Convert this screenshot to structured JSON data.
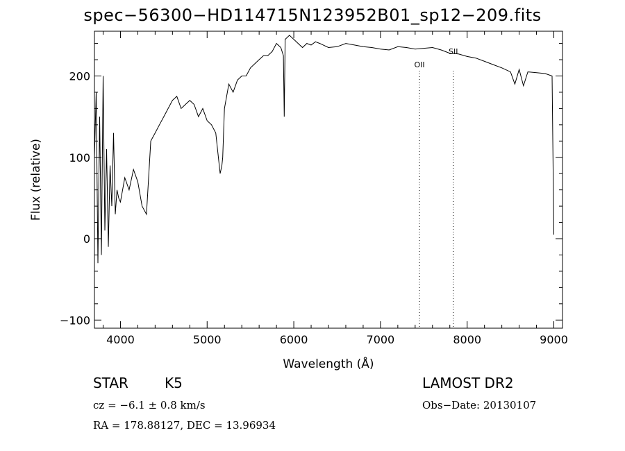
{
  "chart_data": {
    "type": "line",
    "title": "spec−56300−HD114715N123952B01_sp12−209.fits",
    "xlabel": "Wavelength (Å)",
    "ylabel": "Flux (relative)",
    "xlim": [
      3700,
      9100
    ],
    "ylim": [
      -110,
      255
    ],
    "x_ticks": [
      4000,
      5000,
      6000,
      7000,
      8000,
      9000
    ],
    "y_ticks": [
      -100,
      0,
      100,
      200
    ],
    "x_tick_labels": [
      "4000",
      "5000",
      "6000",
      "7000",
      "8000",
      "9000"
    ],
    "y_tick_labels": [
      "−100",
      "0",
      "100",
      "200"
    ],
    "grid": false,
    "line_color": "#000000",
    "series": [
      {
        "x": [
          3700,
          3720,
          3740,
          3760,
          3780,
          3800,
          3820,
          3840,
          3860,
          3880,
          3900,
          3920,
          3940,
          3960,
          3980,
          4000,
          4050,
          4100,
          4150,
          4200,
          4250,
          4300,
          4350,
          4400,
          4450,
          4500,
          4550,
          4600,
          4650,
          4700,
          4750,
          4800,
          4850,
          4900,
          4950,
          5000,
          5050,
          5100,
          5150,
          5170,
          5180,
          5200,
          5250,
          5300,
          5350,
          5400,
          5450,
          5500,
          5550,
          5600,
          5650,
          5700,
          5750,
          5800,
          5850,
          5880,
          5890,
          5900,
          5950,
          6000,
          6050,
          6100,
          6150,
          6200,
          6250,
          6300,
          6400,
          6500,
          6600,
          6700,
          6800,
          6900,
          7000,
          7100,
          7200,
          7300,
          7400,
          7500,
          7600,
          7700,
          7800,
          7900,
          8000,
          8100,
          8200,
          8300,
          8400,
          8500,
          8550,
          8600,
          8650,
          8700,
          8800,
          8900,
          8980,
          8990,
          9000
        ],
        "y": [
          100,
          180,
          -30,
          150,
          -20,
          200,
          10,
          110,
          -10,
          90,
          40,
          130,
          30,
          60,
          50,
          45,
          75,
          60,
          85,
          70,
          40,
          30,
          120,
          130,
          140,
          150,
          160,
          170,
          175,
          160,
          165,
          170,
          165,
          150,
          160,
          145,
          140,
          130,
          80,
          90,
          100,
          160,
          190,
          180,
          195,
          200,
          200,
          210,
          215,
          220,
          225,
          225,
          230,
          240,
          235,
          225,
          150,
          245,
          250,
          245,
          240,
          235,
          240,
          238,
          242,
          240,
          235,
          236,
          240,
          238,
          236,
          235,
          233,
          232,
          236,
          235,
          233,
          234,
          235,
          232,
          228,
          227,
          224,
          222,
          218,
          214,
          210,
          205,
          190,
          208,
          188,
          205,
          204,
          203,
          200,
          100,
          5
        ]
      }
    ],
    "annotations": [
      {
        "label": "OII",
        "x": 7450
      },
      {
        "label": "SII",
        "x": 7840
      }
    ]
  },
  "info": {
    "object_class": "STAR",
    "subclass": "K5",
    "cz": "cz = −6.1 ± 0.8 km/s",
    "coords": "RA = 178.88127, DEC =  13.96934",
    "survey": "LAMOST DR2",
    "obs_date": "Obs−Date: 20130107"
  }
}
